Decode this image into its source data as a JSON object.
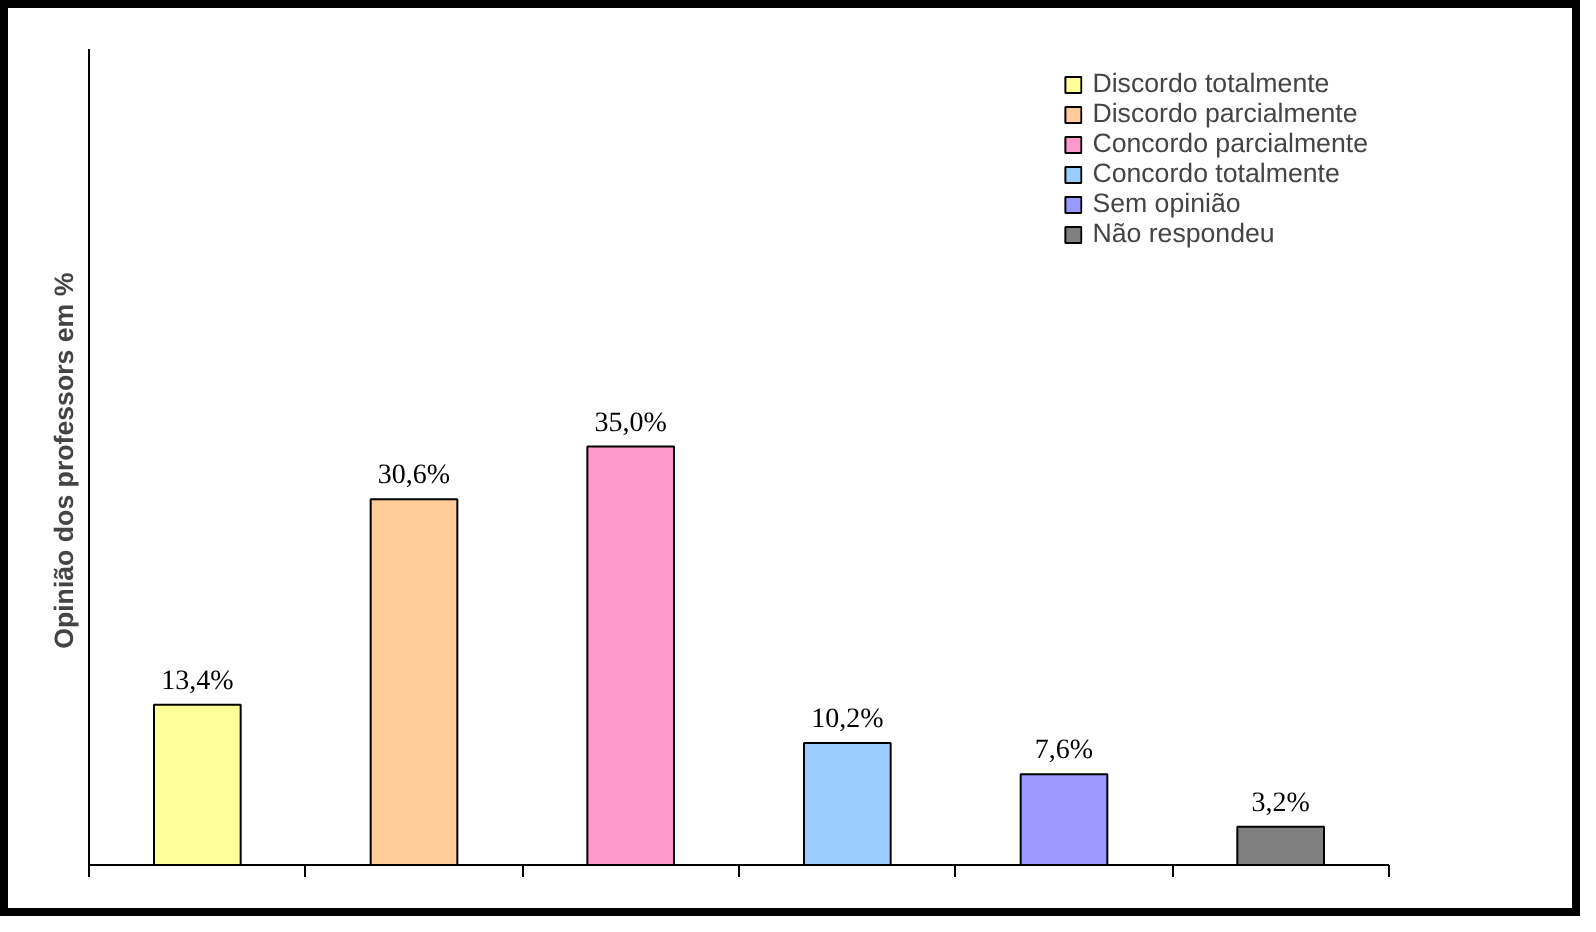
{
  "chart_data": {
    "type": "bar",
    "ylabel": "Opinião dos professors  em %",
    "categories": [
      null,
      null,
      null,
      null,
      null,
      null
    ],
    "stacked": true,
    "series": [
      {
        "name": "Discordo totalmente",
        "color": "#ffff99",
        "values": [
          13.4,
          null,
          null,
          null,
          null,
          null
        ],
        "value_labels": [
          "13,4%",
          null,
          null,
          null,
          null,
          null
        ]
      },
      {
        "name": "Discordo parcialmente",
        "color": "#ffcc99",
        "values": [
          null,
          30.6,
          null,
          null,
          null,
          null
        ],
        "value_labels": [
          null,
          "30,6%",
          null,
          null,
          null,
          null
        ]
      },
      {
        "name": "Concordo parcialmente",
        "color": "#ff99cc",
        "values": [
          null,
          null,
          35.0,
          null,
          null,
          null
        ],
        "value_labels": [
          null,
          null,
          "35,0%",
          null,
          null,
          null
        ]
      },
      {
        "name": "Concordo totalmente",
        "color": "#99ccff",
        "values": [
          null,
          null,
          null,
          10.2,
          null,
          null
        ],
        "value_labels": [
          null,
          null,
          null,
          "10,2%",
          null,
          null
        ]
      },
      {
        "name": "Sem opinião",
        "color": "#9999ff",
        "values": [
          null,
          null,
          null,
          null,
          7.6,
          null
        ],
        "value_labels": [
          null,
          null,
          null,
          null,
          "7,6%",
          null
        ]
      },
      {
        "name": "Não respondeu",
        "color": "#808080",
        "values": [
          null,
          null,
          null,
          null,
          null,
          3.2
        ],
        "value_labels": [
          null,
          null,
          null,
          null,
          null,
          "3,2%"
        ]
      }
    ],
    "legend": "top right"
  }
}
